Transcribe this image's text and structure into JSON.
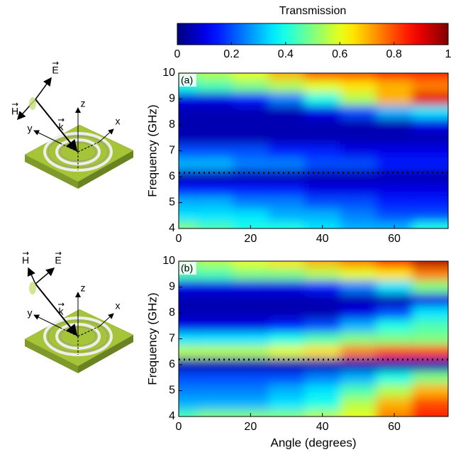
{
  "colorbar": {
    "title": "Transmission",
    "lim": [
      0,
      1
    ],
    "ticks": [
      0,
      0.2,
      0.4,
      0.6,
      0.8,
      1
    ]
  },
  "diagrams": [
    {
      "E": "E",
      "H": "H",
      "k": "k",
      "x": "x",
      "y": "y",
      "z": "z"
    },
    {
      "E": "E",
      "H": "H",
      "k": "k",
      "x": "x",
      "y": "y",
      "z": "z"
    }
  ],
  "chart_data": [
    {
      "type": "heatmap",
      "label": "(a)",
      "ylabel": "Frequency (GHz)",
      "x": [
        0,
        10,
        20,
        30,
        40,
        50,
        60,
        70
      ],
      "y": [
        4,
        4.5,
        5,
        5.5,
        6,
        6.5,
        7,
        7.5,
        8,
        8.5,
        9,
        9.5,
        10
      ],
      "values": [
        [
          0.5,
          0.45,
          0.4,
          0.4,
          0.35,
          0.3,
          0.3,
          0.4
        ],
        [
          0.35,
          0.35,
          0.35,
          0.3,
          0.3,
          0.25,
          0.2,
          0.2
        ],
        [
          0.3,
          0.3,
          0.25,
          0.25,
          0.2,
          0.2,
          0.15,
          0.15
        ],
        [
          0.15,
          0.15,
          0.15,
          0.15,
          0.1,
          0.1,
          0.1,
          0.1
        ],
        [
          0.05,
          0.05,
          0.05,
          0.05,
          0.05,
          0.05,
          0.05,
          0.05
        ],
        [
          0.3,
          0.3,
          0.25,
          0.25,
          0.2,
          0.2,
          0.15,
          0.15
        ],
        [
          0.2,
          0.2,
          0.2,
          0.15,
          0.15,
          0.1,
          0.1,
          0.1
        ],
        [
          0.05,
          0.05,
          0.05,
          0.05,
          0.05,
          0.05,
          0.05,
          0.05
        ],
        [
          0.05,
          0.05,
          0.05,
          0.05,
          0.05,
          0.05,
          0.05,
          0.1
        ],
        [
          0.05,
          0.05,
          0.05,
          0.05,
          0.1,
          0.2,
          0.3,
          0.35
        ],
        [
          0.1,
          0.1,
          0.15,
          0.25,
          0.4,
          0.55,
          0.7,
          0.9
        ],
        [
          0.4,
          0.45,
          0.5,
          0.55,
          0.6,
          0.65,
          0.7,
          0.75
        ],
        [
          0.5,
          0.55,
          0.6,
          0.7,
          0.8,
          0.8,
          0.85,
          0.85
        ]
      ],
      "zlim": [
        0,
        1
      ],
      "xlim": [
        0,
        75
      ],
      "ylim": [
        4,
        10
      ],
      "xticks": [
        0,
        20,
        40,
        60
      ],
      "yticks": [
        4,
        5,
        6,
        7,
        8,
        9,
        10
      ],
      "hline": 6.15
    },
    {
      "type": "heatmap",
      "label": "(b)",
      "ylabel": "Frequency (GHz)",
      "xlabel": "Angle (degrees)",
      "x": [
        0,
        10,
        20,
        30,
        40,
        50,
        60,
        70
      ],
      "y": [
        4,
        4.5,
        5,
        5.5,
        6,
        6.5,
        7,
        7.5,
        8,
        8.5,
        9,
        9.5,
        10
      ],
      "values": [
        [
          0.45,
          0.5,
          0.5,
          0.5,
          0.55,
          0.6,
          0.75,
          0.85
        ],
        [
          0.3,
          0.3,
          0.3,
          0.35,
          0.4,
          0.55,
          0.7,
          0.8
        ],
        [
          0.25,
          0.25,
          0.25,
          0.3,
          0.35,
          0.45,
          0.55,
          0.7
        ],
        [
          0.2,
          0.2,
          0.2,
          0.2,
          0.25,
          0.3,
          0.4,
          0.5
        ],
        [
          0.05,
          0.05,
          0.05,
          0.05,
          0.05,
          0.05,
          0.05,
          0.05
        ],
        [
          0.55,
          0.55,
          0.55,
          0.6,
          0.65,
          0.75,
          0.8,
          0.8
        ],
        [
          0.35,
          0.35,
          0.35,
          0.4,
          0.45,
          0.5,
          0.5,
          0.5
        ],
        [
          0.1,
          0.1,
          0.1,
          0.15,
          0.2,
          0.3,
          0.4,
          0.45
        ],
        [
          0.05,
          0.05,
          0.05,
          0.05,
          0.05,
          0.1,
          0.2,
          0.35
        ],
        [
          0.05,
          0.05,
          0.05,
          0.05,
          0.05,
          0.05,
          0.05,
          0.1
        ],
        [
          0.1,
          0.1,
          0.1,
          0.1,
          0.15,
          0.25,
          0.35,
          0.5
        ],
        [
          0.45,
          0.45,
          0.5,
          0.5,
          0.55,
          0.6,
          0.65,
          0.75
        ],
        [
          0.5,
          0.55,
          0.6,
          0.65,
          0.7,
          0.75,
          0.85,
          0.95
        ]
      ],
      "zlim": [
        0,
        1
      ],
      "xlim": [
        0,
        75
      ],
      "ylim": [
        4,
        10
      ],
      "xticks": [
        0,
        20,
        40,
        60
      ],
      "yticks": [
        4,
        5,
        6,
        7,
        8,
        9,
        10
      ],
      "hline": 6.2
    }
  ]
}
